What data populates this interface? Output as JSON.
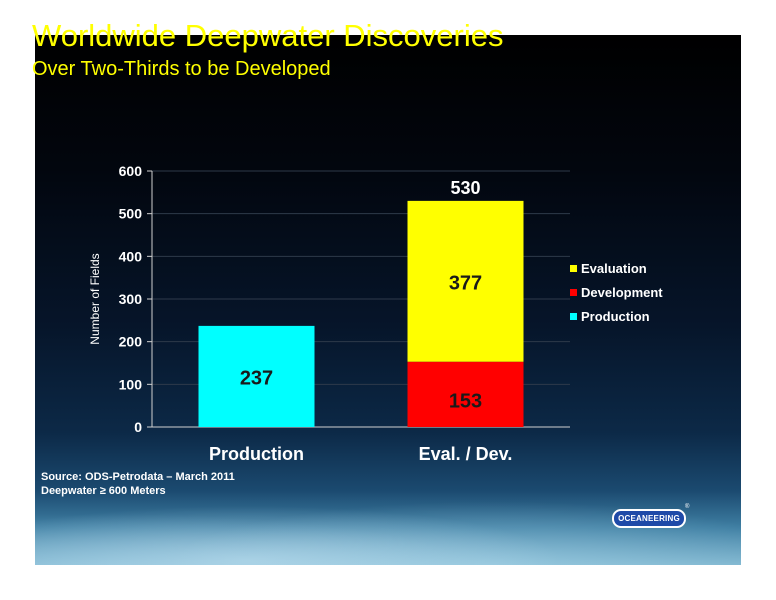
{
  "slide": {
    "title": "Worldwide Deepwater Discoveries",
    "subtitle": "Over Two-Thirds to be Developed",
    "source_lines": [
      "Source:  ODS-Petrodata – March 2011",
      "Deepwater ≥ 600 Meters"
    ],
    "logo_text": "OCEANEERING",
    "logo_mark": "®"
  },
  "colors": {
    "production": "#00ffff",
    "development": "#ff0000",
    "evaluation": "#ffff00",
    "accent_title": "#ffff00"
  },
  "chart_data": {
    "type": "bar",
    "stacked": true,
    "categories": [
      "Production",
      "Eval. / Dev."
    ],
    "series": [
      {
        "name": "Production",
        "values": [
          237,
          0
        ],
        "color": "#00ffff"
      },
      {
        "name": "Development",
        "values": [
          0,
          153
        ],
        "color": "#ff0000"
      },
      {
        "name": "Evaluation",
        "values": [
          0,
          377
        ],
        "color": "#ffff00"
      }
    ],
    "totals": [
      null,
      530
    ],
    "ylabel": "Number of Fields",
    "xlabel": "",
    "ylim": [
      0,
      600
    ],
    "yticks": [
      0,
      100,
      200,
      300,
      400,
      500,
      600
    ],
    "legend": [
      "Evaluation",
      "Development",
      "Production"
    ],
    "legend_position": "right",
    "grid": true
  }
}
